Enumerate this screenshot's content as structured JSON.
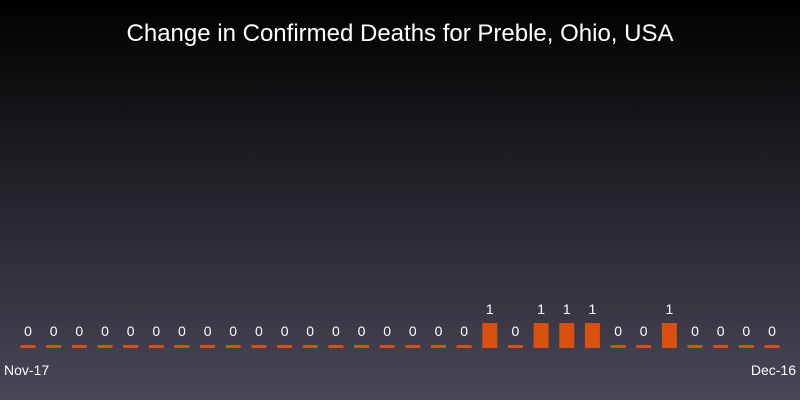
{
  "chart_data": {
    "type": "bar",
    "title": "Change in Confirmed Deaths for Preble, Ohio, USA",
    "x_start_label": "Nov-17",
    "x_end_label": "Dec-16",
    "values": [
      0,
      0,
      0,
      0,
      0,
      0,
      0,
      0,
      0,
      0,
      0,
      0,
      0,
      0,
      0,
      0,
      0,
      0,
      1,
      0,
      1,
      1,
      1,
      0,
      0,
      1,
      0,
      0,
      0,
      0
    ],
    "bar_color": "#d9500f",
    "text_color": "#ffffff",
    "grid": false,
    "legend": "none"
  }
}
